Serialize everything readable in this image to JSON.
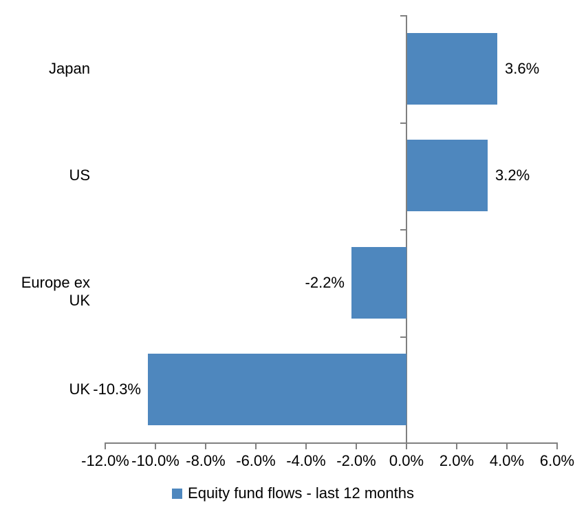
{
  "chart_data": {
    "type": "bar",
    "orientation": "horizontal",
    "categories": [
      "Japan",
      "US",
      "Europe ex UK",
      "UK"
    ],
    "values": [
      3.6,
      3.2,
      -2.2,
      -10.3
    ],
    "data_labels": [
      "3.6%",
      "3.2%",
      "-2.2%",
      "-10.3%"
    ],
    "xlim": [
      -12,
      6
    ],
    "x_tick_values": [
      -12,
      -10,
      -8,
      -6,
      -4,
      -2,
      0,
      2,
      4,
      6
    ],
    "x_tick_labels": [
      "-12.0%",
      "-10.0%",
      "-8.0%",
      "-6.0%",
      "-4.0%",
      "-2.0%",
      "0.0%",
      "2.0%",
      "4.0%",
      "6.0%"
    ],
    "title": "",
    "xlabel": "",
    "ylabel": "",
    "grid": false,
    "bar_color": "#4E87BE",
    "axis_color": "#808080",
    "text_color": "#000000",
    "legend": {
      "position": "bottom",
      "label": "Equity fund flows - last 12 months",
      "swatch_color": "#4E87BE"
    }
  }
}
